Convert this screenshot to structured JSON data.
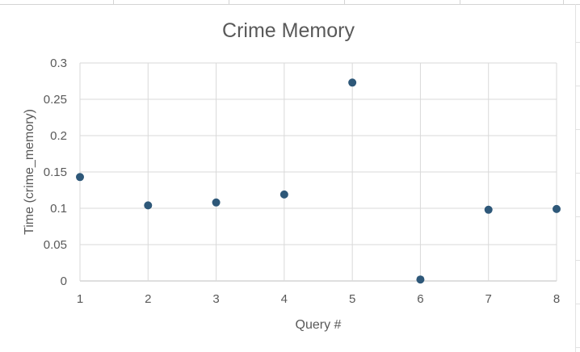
{
  "chart_data": {
    "type": "scatter",
    "title": "Crime Memory",
    "xlabel": "Query #",
    "ylabel": "Time (crime_memory)",
    "xlim": [
      1,
      8
    ],
    "ylim": [
      0,
      0.3
    ],
    "x_ticks": [
      "1",
      "2",
      "3",
      "4",
      "5",
      "6",
      "7",
      "8"
    ],
    "y_ticks": [
      "0",
      "0.05",
      "0.1",
      "0.15",
      "0.2",
      "0.25",
      "0.3"
    ],
    "grid": true,
    "legend": "none",
    "marker_color": "#2e5879",
    "series": [
      {
        "x": [
          1,
          2,
          3,
          4,
          5,
          6,
          7,
          8
        ],
        "y": [
          0.143,
          0.104,
          0.108,
          0.119,
          0.273,
          0.002,
          0.098,
          0.099
        ]
      }
    ]
  }
}
